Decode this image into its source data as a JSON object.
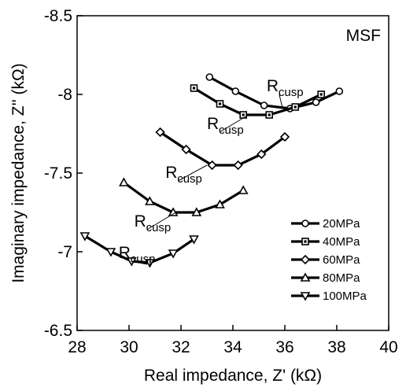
{
  "chart_data": {
    "type": "line",
    "panel_label": "MSF",
    "xlabel": "Real impedance, Z' (kΩ)",
    "ylabel": "Imaginary impedance, Z'' (kΩ)",
    "xlim": [
      28,
      40
    ],
    "ylim": [
      -6.5,
      -8.5
    ],
    "x_ticks": [
      28,
      30,
      32,
      34,
      36,
      38,
      40
    ],
    "x_tick_labels": [
      "28",
      "30",
      "32",
      "34",
      "36",
      "38",
      "40"
    ],
    "y_ticks": [
      -8.5,
      -8,
      -7.5,
      -7,
      -6.5
    ],
    "y_tick_labels": [
      "-8.5",
      "-8",
      "-7.5",
      "-7",
      "-6.5"
    ],
    "legend_position": "bottom-right",
    "series": [
      {
        "name": "20MPa",
        "marker": "circle",
        "x": [
          33.1,
          34.1,
          35.2,
          36.2,
          37.2,
          38.1
        ],
        "y": [
          -8.11,
          -8.02,
          -7.93,
          -7.91,
          -7.95,
          -8.02
        ]
      },
      {
        "name": "40MPa",
        "marker": "square",
        "x": [
          32.5,
          33.5,
          34.4,
          35.4,
          36.4,
          37.4
        ],
        "y": [
          -8.04,
          -7.94,
          -7.87,
          -7.87,
          -7.92,
          -8.0
        ]
      },
      {
        "name": "60MPa",
        "marker": "diamond",
        "x": [
          31.2,
          32.2,
          33.2,
          34.2,
          35.1,
          36.0
        ],
        "y": [
          -7.76,
          -7.65,
          -7.55,
          -7.55,
          -7.62,
          -7.73
        ]
      },
      {
        "name": "80MPa",
        "marker": "triangle-up",
        "x": [
          29.8,
          30.8,
          31.7,
          32.6,
          33.5,
          34.4
        ],
        "y": [
          -7.44,
          -7.32,
          -7.25,
          -7.25,
          -7.3,
          -7.39
        ]
      },
      {
        "name": "100MPa",
        "marker": "triangle-down",
        "x": [
          28.3,
          29.3,
          30.1,
          30.8,
          31.7,
          32.5
        ],
        "y": [
          -7.1,
          -7.0,
          -6.94,
          -6.93,
          -6.99,
          -7.08
        ]
      }
    ],
    "annotations": [
      {
        "main": "R",
        "sub": "cusp",
        "x": 35.3,
        "y": -8.02,
        "ax": 35.9,
        "ay": -7.92
      },
      {
        "main": "R",
        "sub": "cusp",
        "x": 33.0,
        "y": -7.78,
        "ax": 34.5,
        "ay": -7.86
      },
      {
        "main": "R",
        "sub": "cusp",
        "x": 31.4,
        "y": -7.47,
        "ax": 33.0,
        "ay": -7.55
      },
      {
        "main": "R",
        "sub": "cusp",
        "x": 30.2,
        "y": -7.16,
        "ax": 31.8,
        "ay": -7.25
      },
      {
        "main": "R",
        "sub": "cusp",
        "x": 29.6,
        "y": -6.96,
        "ax": 30.7,
        "ay": -6.92
      }
    ]
  }
}
